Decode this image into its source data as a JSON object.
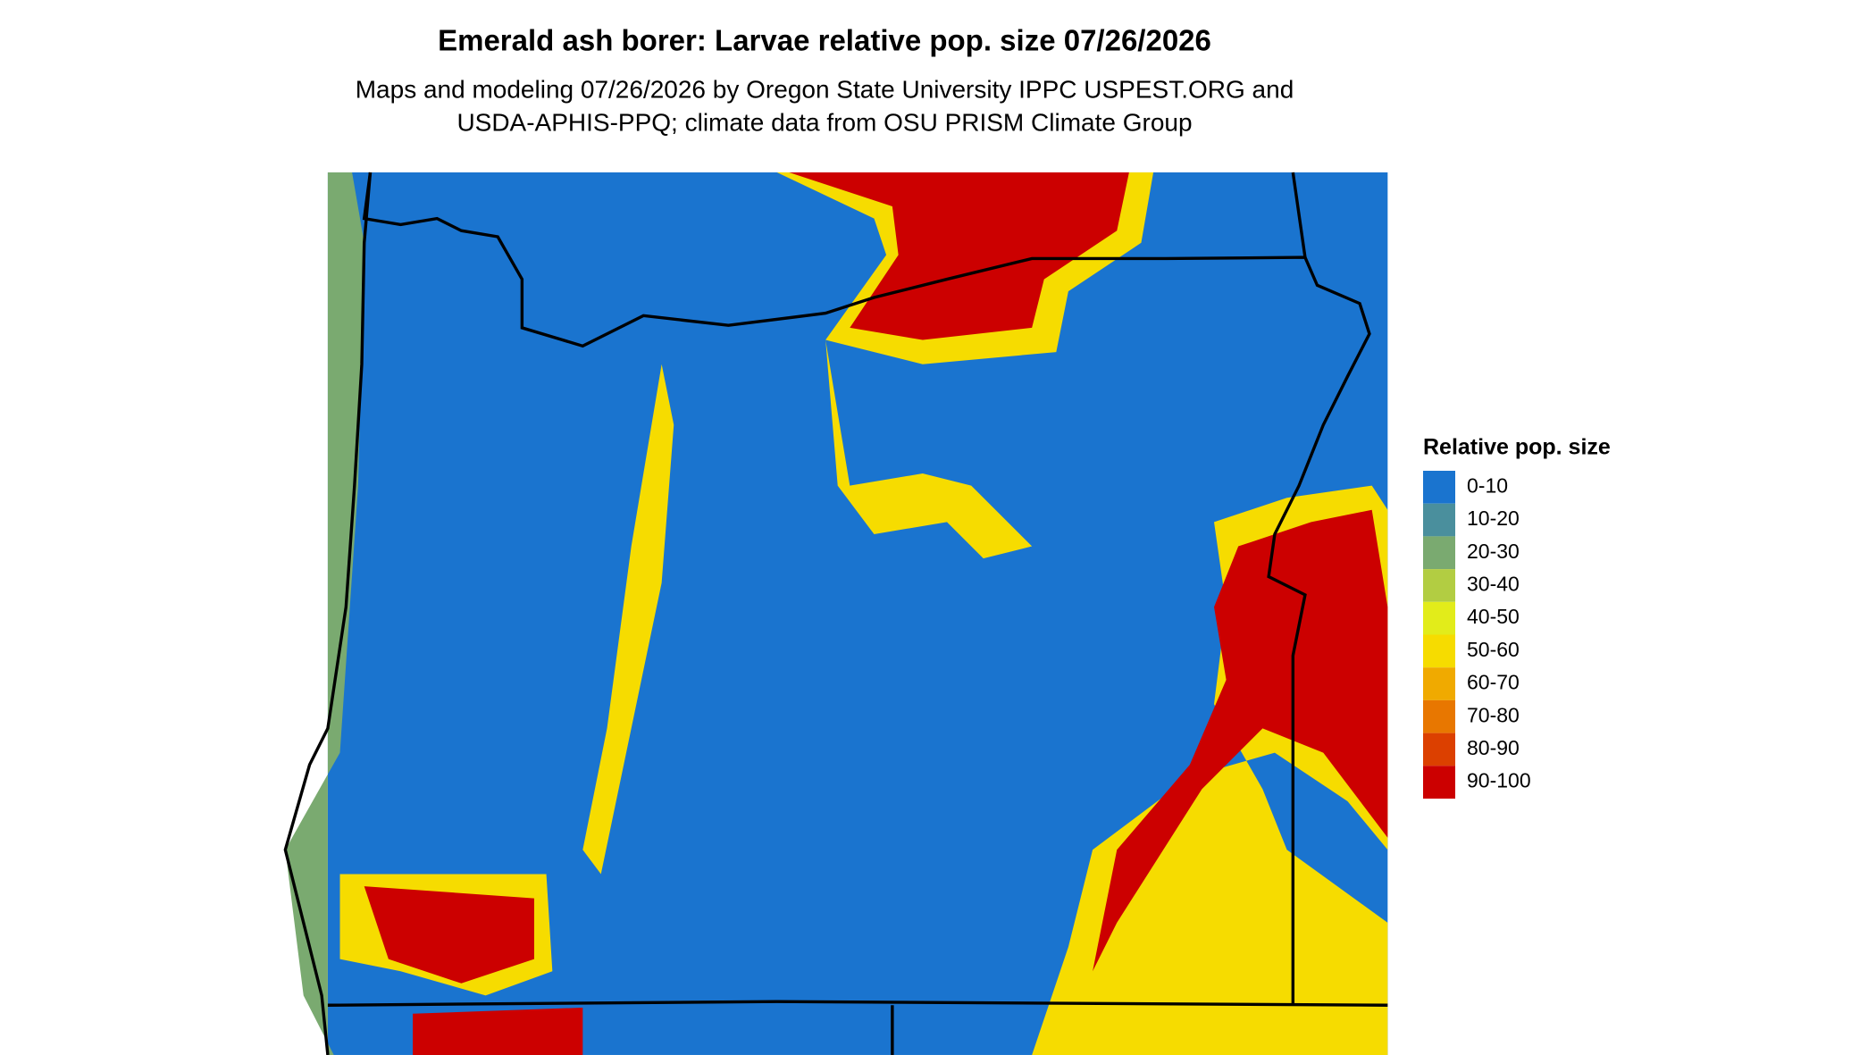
{
  "title": "Emerald ash borer: Larvae relative pop. size 07/26/2026",
  "subtitle": [
    "Maps and modeling 07/26/2026 by Oregon State University IPPC USPEST.ORG and",
    "USDA-APHIS-PPQ; climate data from OSU PRISM Climate Group"
  ],
  "legend": {
    "title": "Relative pop. size",
    "items": [
      {
        "label": "0-10",
        "color": "#1a74cf"
      },
      {
        "label": "10-20",
        "color": "#4a8f9d"
      },
      {
        "label": "20-30",
        "color": "#7aaa70"
      },
      {
        "label": "30-40",
        "color": "#b2cd42"
      },
      {
        "label": "40-50",
        "color": "#e2ec1a"
      },
      {
        "label": "50-60",
        "color": "#f6dc00"
      },
      {
        "label": "60-70",
        "color": "#f0aa00"
      },
      {
        "label": "70-80",
        "color": "#e87700"
      },
      {
        "label": "80-90",
        "color": "#dc4000"
      },
      {
        "label": "90-100",
        "color": "#cc0000"
      }
    ]
  }
}
